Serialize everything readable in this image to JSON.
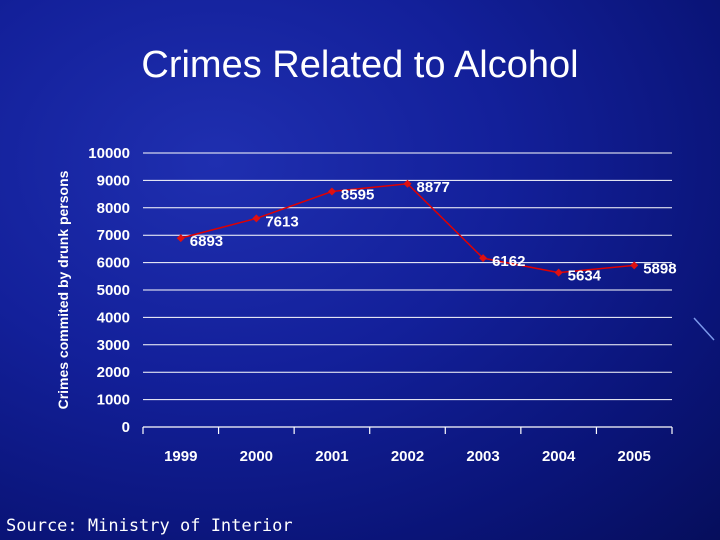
{
  "slide": {
    "title": "Crimes Related to Alcohol",
    "source": "Source: Ministry of Interior"
  },
  "colors": {
    "background": "#0f1a8c",
    "line": "#e00000",
    "marker": "#e01010",
    "grid": "#ffffff",
    "text": "#ffffff"
  },
  "chart_data": {
    "type": "line",
    "title": "Crimes Related to Alcohol",
    "xlabel": "",
    "ylabel": "Crimes commited by drunk persons",
    "categories": [
      "1999",
      "2000",
      "2001",
      "2002",
      "2003",
      "2004",
      "2005"
    ],
    "values": [
      6893,
      7613,
      8595,
      8877,
      6162,
      5634,
      5898
    ],
    "data_labels": [
      "6893",
      "7613",
      "8595",
      "8877",
      "6162",
      "5634",
      "5898"
    ],
    "ylim": [
      0,
      10000
    ],
    "yticks": [
      "0",
      "1000",
      "2000",
      "3000",
      "4000",
      "5000",
      "6000",
      "7000",
      "8000",
      "9000",
      "10000"
    ],
    "grid": true,
    "legend": "none"
  }
}
